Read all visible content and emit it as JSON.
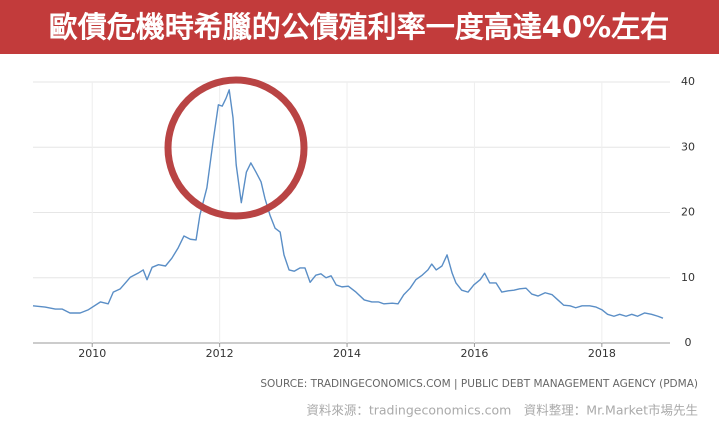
{
  "chart_data": {
    "type": "line",
    "title": "歐債危機時希臘的公債殖利率一度高達40%左右",
    "source": "SOURCE: TRADINGECONOMICS.COM | PUBLIC DEBT MANAGEMENT AGENCY (PDMA)",
    "credit": "資料來源：tradingeconomics.com　資料整理：Mr.Market市場先生",
    "color": "#5a8ec6",
    "x": [
      2009.07,
      2009.26,
      2009.42,
      2009.53,
      2009.65,
      2009.81,
      2009.94,
      2010.13,
      2010.25,
      2010.33,
      2010.44,
      2010.6,
      2010.72,
      2010.8,
      2010.86,
      2010.94,
      2011.04,
      2011.15,
      2011.25,
      2011.35,
      2011.44,
      2011.54,
      2011.63,
      2011.69,
      2011.8,
      2011.9,
      2011.98,
      2012.04,
      2012.1,
      2012.15,
      2012.21,
      2012.26,
      2012.34,
      2012.42,
      2012.49,
      2012.57,
      2012.65,
      2012.71,
      2012.79,
      2012.87,
      2012.95,
      2013.01,
      2013.09,
      2013.17,
      2013.26,
      2013.34,
      2013.42,
      2013.51,
      2013.59,
      2013.67,
      2013.75,
      2013.83,
      2013.92,
      2014.02,
      2014.14,
      2014.27,
      2014.39,
      2014.49,
      2014.58,
      2014.71,
      2014.8,
      2014.89,
      2014.99,
      2015.08,
      2015.18,
      2015.27,
      2015.33,
      2015.4,
      2015.49,
      2015.57,
      2015.65,
      2015.71,
      2015.8,
      2015.9,
      2015.99,
      2016.09,
      2016.16,
      2016.24,
      2016.34,
      2016.43,
      2016.53,
      2016.62,
      2016.71,
      2016.81,
      2016.9,
      2017.0,
      2017.11,
      2017.22,
      2017.31,
      2017.4,
      2017.5,
      2017.59,
      2017.69,
      2017.81,
      2017.91,
      2018.0,
      2018.09,
      2018.19,
      2018.28,
      2018.38,
      2018.47,
      2018.56,
      2018.67,
      2018.78,
      2018.88,
      2018.96
    ],
    "values": [
      5.7,
      5.5,
      5.2,
      5.2,
      4.6,
      4.6,
      5.1,
      6.3,
      6.0,
      7.8,
      8.3,
      10.1,
      10.7,
      11.2,
      9.7,
      11.6,
      12.0,
      11.8,
      13.0,
      14.6,
      16.4,
      15.9,
      15.8,
      19.6,
      23.8,
      31.1,
      36.5,
      36.3,
      37.5,
      38.8,
      34.5,
      27.3,
      21.5,
      26.2,
      27.6,
      26.2,
      24.7,
      22.2,
      19.6,
      17.6,
      17.0,
      13.5,
      11.2,
      11.0,
      11.5,
      11.5,
      9.3,
      10.4,
      10.6,
      10.0,
      10.3,
      8.9,
      8.6,
      8.7,
      7.8,
      6.6,
      6.3,
      6.3,
      6.0,
      6.1,
      6.0,
      7.4,
      8.4,
      9.7,
      10.4,
      11.2,
      12.1,
      11.2,
      11.8,
      13.5,
      10.7,
      9.2,
      8.1,
      7.8,
      8.9,
      9.7,
      10.7,
      9.2,
      9.2,
      7.8,
      8.0,
      8.1,
      8.3,
      8.4,
      7.5,
      7.2,
      7.7,
      7.4,
      6.6,
      5.8,
      5.7,
      5.4,
      5.7,
      5.7,
      5.5,
      5.1,
      4.4,
      4.1,
      4.4,
      4.1,
      4.4,
      4.1,
      4.6,
      4.4,
      4.1,
      3.8
    ],
    "xlim": [
      2009.07,
      2019.07
    ],
    "xticks": [
      2010,
      2012,
      2014,
      2016,
      2018
    ],
    "ylim": [
      0,
      40
    ],
    "yticks": [
      0,
      10,
      20,
      30,
      40
    ],
    "grid": true
  }
}
